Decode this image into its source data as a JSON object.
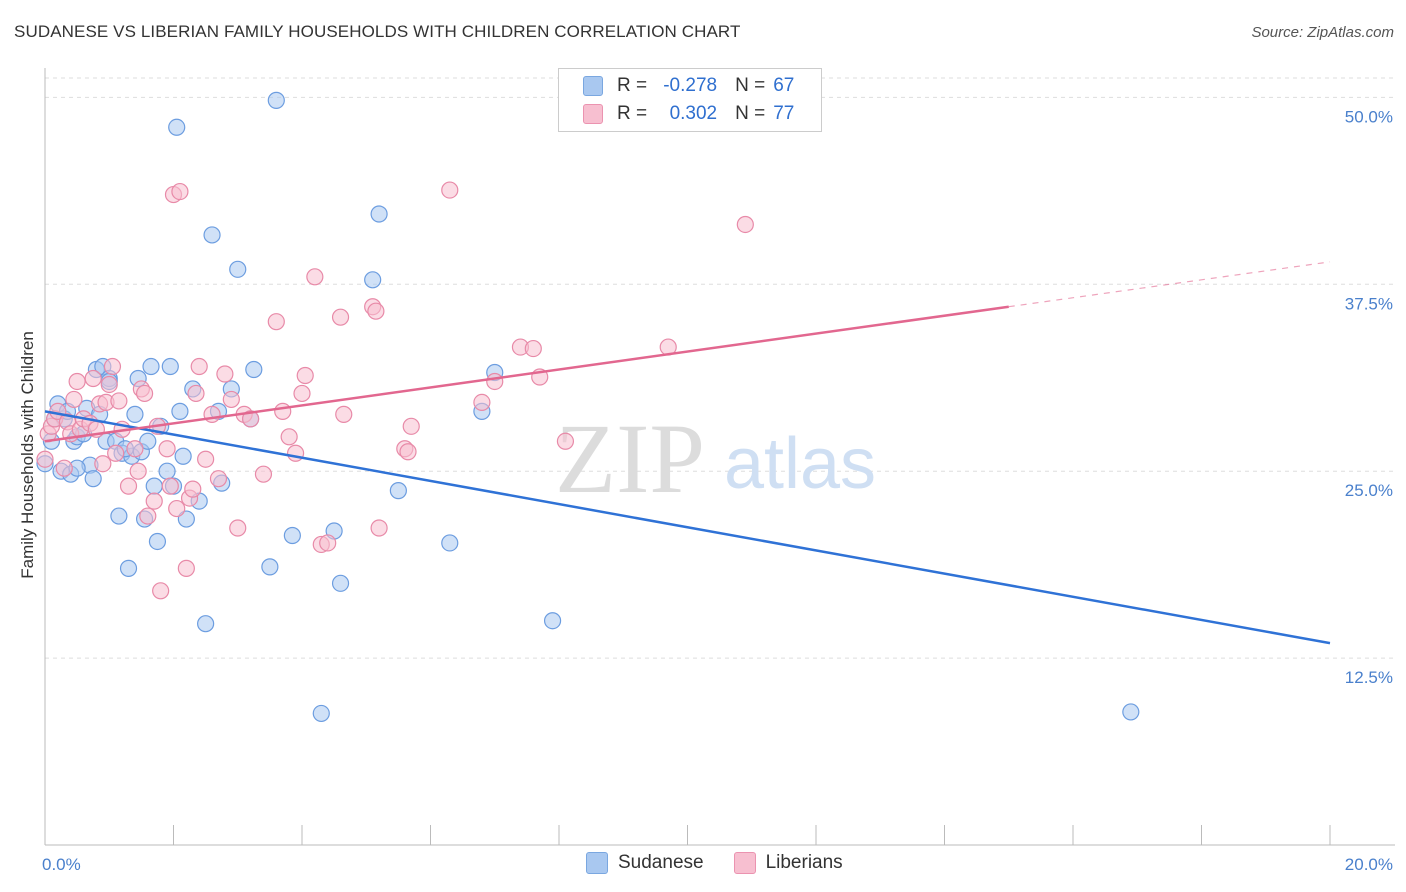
{
  "header": {
    "title": "SUDANESE VS LIBERIAN FAMILY HOUSEHOLDS WITH CHILDREN CORRELATION CHART",
    "source": "Source: ZipAtlas.com"
  },
  "watermark": {
    "zip": "ZIP",
    "atlas": "atlas"
  },
  "legend": {
    "rows": [
      {
        "r_label": "R =",
        "r_value": "-0.278",
        "n_label": "N =",
        "n_value": "67",
        "color": "#a9c8f0",
        "border": "#7aa7e0"
      },
      {
        "r_label": "R =",
        "r_value": "0.302",
        "n_label": "N =",
        "n_value": "77",
        "color": "#f7bfd0",
        "border": "#eb93b0"
      }
    ]
  },
  "bottom_legend": {
    "items": [
      "Sudanese",
      "Liberians"
    ]
  },
  "colors": {
    "sudanese_fill": "#a9c8f0",
    "sudanese_stroke": "#6c9de0",
    "sudanese_line": "#2f72d6",
    "liberian_fill": "#f7bfd0",
    "liberian_stroke": "#e88aa8",
    "liberian_line": "#e2678f",
    "grid": "#dddddd",
    "tick_text": "#4a80cc"
  },
  "chart_data": {
    "type": "scatter",
    "title": "SUDANESE VS LIBERIAN FAMILY HOUSEHOLDS WITH CHILDREN CORRELATION CHART",
    "xlabel": "",
    "ylabel": "Family Households with Children",
    "xlim": [
      0,
      20
    ],
    "ylim": [
      0,
      52.5
    ],
    "x_tick_labels": [
      "0.0%",
      "20.0%"
    ],
    "y_ticks": [
      12.5,
      25.0,
      37.5,
      50.0
    ],
    "y_tick_labels": [
      "12.5%",
      "25.0%",
      "37.5%",
      "50.0%"
    ],
    "grid": true,
    "legend_position": "top-center",
    "series": [
      {
        "name": "Sudanese",
        "r": -0.278,
        "n": 67,
        "trend": {
          "x": [
            0,
            20
          ],
          "y": [
            29.0,
            13.5
          ],
          "dashed_from": null
        },
        "points": [
          [
            0.0,
            25.5
          ],
          [
            0.2,
            29.5
          ],
          [
            0.25,
            25.0
          ],
          [
            0.3,
            28.5
          ],
          [
            0.35,
            29.0
          ],
          [
            0.4,
            24.8
          ],
          [
            0.45,
            27.0
          ],
          [
            0.5,
            27.3
          ],
          [
            0.6,
            27.5
          ],
          [
            0.65,
            29.2
          ],
          [
            0.7,
            25.4
          ],
          [
            0.75,
            24.5
          ],
          [
            0.8,
            31.8
          ],
          [
            0.85,
            28.8
          ],
          [
            0.9,
            32.0
          ],
          [
            0.95,
            27.0
          ],
          [
            1.0,
            31.2
          ],
          [
            1.1,
            27.0
          ],
          [
            1.15,
            22.0
          ],
          [
            1.2,
            26.2
          ],
          [
            1.3,
            18.5
          ],
          [
            1.35,
            26.0
          ],
          [
            1.4,
            28.8
          ],
          [
            1.45,
            31.2
          ],
          [
            1.5,
            26.3
          ],
          [
            1.55,
            21.8
          ],
          [
            1.6,
            27.0
          ],
          [
            1.65,
            32.0
          ],
          [
            1.7,
            24.0
          ],
          [
            1.75,
            20.3
          ],
          [
            1.8,
            28.0
          ],
          [
            1.9,
            25.0
          ],
          [
            1.95,
            32.0
          ],
          [
            2.0,
            24.0
          ],
          [
            2.05,
            48.0
          ],
          [
            2.1,
            29.0
          ],
          [
            2.15,
            26.0
          ],
          [
            2.2,
            21.8
          ],
          [
            2.3,
            30.5
          ],
          [
            2.4,
            23.0
          ],
          [
            2.5,
            14.8
          ],
          [
            2.6,
            40.8
          ],
          [
            2.7,
            29.0
          ],
          [
            2.75,
            24.2
          ],
          [
            2.9,
            30.5
          ],
          [
            3.0,
            38.5
          ],
          [
            3.2,
            28.5
          ],
          [
            3.25,
            31.8
          ],
          [
            3.5,
            18.6
          ],
          [
            3.6,
            49.8
          ],
          [
            3.85,
            20.7
          ],
          [
            4.3,
            8.8
          ],
          [
            4.5,
            21.0
          ],
          [
            4.6,
            17.5
          ],
          [
            5.1,
            37.8
          ],
          [
            5.2,
            42.2
          ],
          [
            5.5,
            23.7
          ],
          [
            6.3,
            20.2
          ],
          [
            6.8,
            29.0
          ],
          [
            7.0,
            31.6
          ],
          [
            7.9,
            15.0
          ],
          [
            16.9,
            8.9
          ],
          [
            0.1,
            27.0
          ],
          [
            0.15,
            28.5
          ],
          [
            1.25,
            26.5
          ],
          [
            1.0,
            31.0
          ],
          [
            0.5,
            25.2
          ]
        ]
      },
      {
        "name": "Liberians",
        "r": 0.302,
        "n": 77,
        "trend": {
          "x": [
            0,
            20
          ],
          "y": [
            27.0,
            39.0
          ],
          "dashed_from": 15
        },
        "points": [
          [
            0.0,
            25.8
          ],
          [
            0.05,
            27.5
          ],
          [
            0.1,
            28.0
          ],
          [
            0.15,
            28.5
          ],
          [
            0.2,
            29.0
          ],
          [
            0.3,
            25.2
          ],
          [
            0.35,
            28.3
          ],
          [
            0.4,
            27.5
          ],
          [
            0.45,
            29.8
          ],
          [
            0.5,
            31.0
          ],
          [
            0.55,
            27.8
          ],
          [
            0.6,
            28.5
          ],
          [
            0.7,
            28.2
          ],
          [
            0.75,
            31.2
          ],
          [
            0.8,
            27.8
          ],
          [
            0.85,
            29.5
          ],
          [
            0.9,
            25.5
          ],
          [
            0.95,
            29.6
          ],
          [
            1.0,
            30.8
          ],
          [
            1.05,
            32.0
          ],
          [
            1.1,
            26.2
          ],
          [
            1.15,
            29.7
          ],
          [
            1.2,
            27.8
          ],
          [
            1.3,
            24.0
          ],
          [
            1.4,
            26.5
          ],
          [
            1.45,
            25.0
          ],
          [
            1.5,
            30.5
          ],
          [
            1.55,
            30.2
          ],
          [
            1.6,
            22.0
          ],
          [
            1.7,
            23.0
          ],
          [
            1.75,
            28.0
          ],
          [
            1.8,
            17.0
          ],
          [
            1.9,
            26.5
          ],
          [
            1.95,
            24.0
          ],
          [
            2.0,
            43.5
          ],
          [
            2.05,
            22.5
          ],
          [
            2.1,
            43.7
          ],
          [
            2.2,
            18.5
          ],
          [
            2.25,
            23.2
          ],
          [
            2.3,
            23.8
          ],
          [
            2.35,
            30.2
          ],
          [
            2.4,
            32.0
          ],
          [
            2.5,
            25.8
          ],
          [
            2.6,
            28.8
          ],
          [
            2.7,
            24.5
          ],
          [
            2.8,
            31.5
          ],
          [
            2.9,
            29.8
          ],
          [
            3.0,
            21.2
          ],
          [
            3.1,
            28.8
          ],
          [
            3.2,
            28.5
          ],
          [
            3.4,
            24.8
          ],
          [
            3.6,
            35.0
          ],
          [
            3.7,
            29.0
          ],
          [
            3.8,
            27.3
          ],
          [
            3.9,
            26.2
          ],
          [
            4.0,
            30.2
          ],
          [
            4.05,
            31.4
          ],
          [
            4.2,
            38.0
          ],
          [
            4.3,
            20.1
          ],
          [
            4.4,
            20.2
          ],
          [
            4.6,
            35.3
          ],
          [
            4.65,
            28.8
          ],
          [
            5.1,
            36.0
          ],
          [
            5.15,
            35.7
          ],
          [
            5.2,
            21.2
          ],
          [
            5.6,
            26.5
          ],
          [
            5.65,
            26.3
          ],
          [
            5.7,
            28.0
          ],
          [
            6.3,
            43.8
          ],
          [
            6.8,
            29.6
          ],
          [
            7.0,
            31.0
          ],
          [
            7.4,
            33.3
          ],
          [
            7.6,
            33.2
          ],
          [
            7.7,
            31.3
          ],
          [
            8.1,
            27.0
          ],
          [
            9.7,
            33.3
          ],
          [
            10.9,
            41.5
          ]
        ]
      }
    ]
  }
}
